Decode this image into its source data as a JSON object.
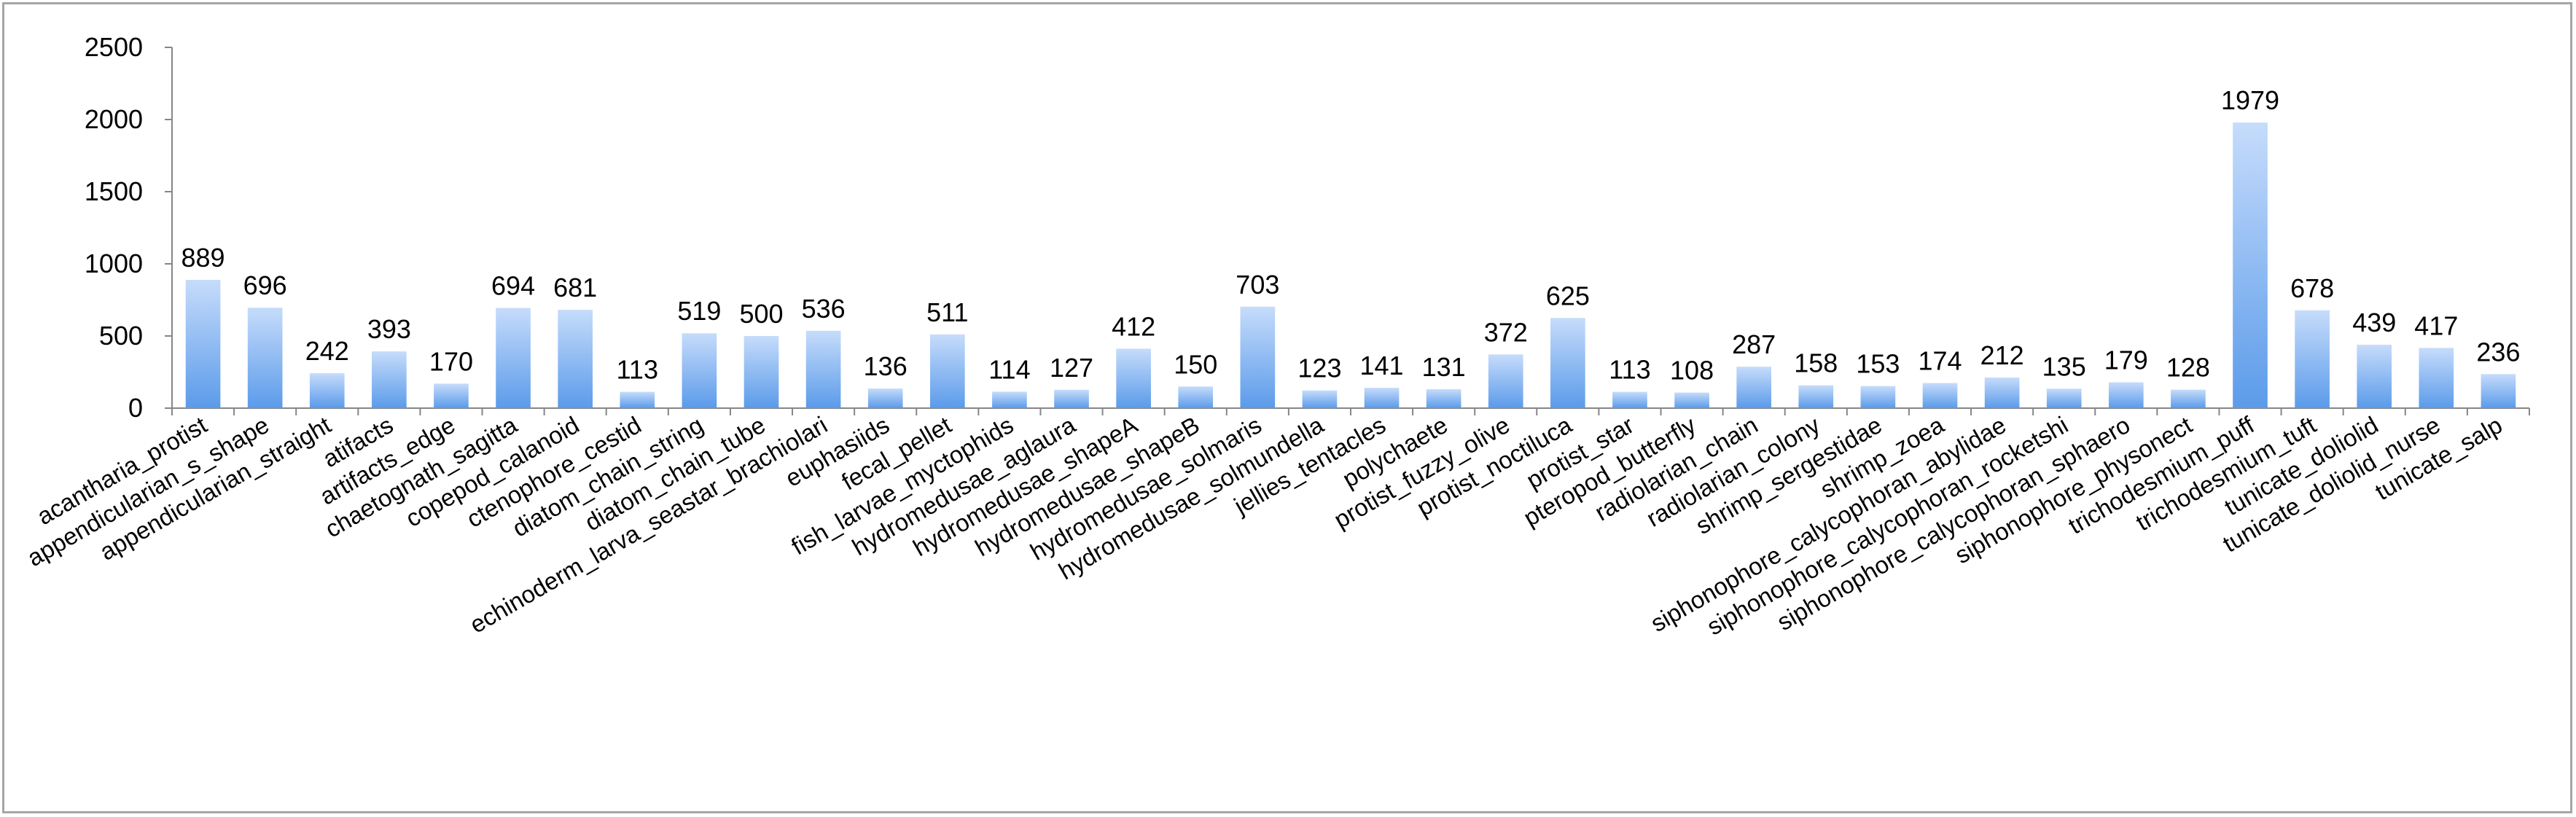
{
  "chart_data": {
    "type": "bar",
    "title": "",
    "xlabel": "",
    "ylabel": "",
    "ylim": [
      0,
      2500
    ],
    "yticks": [
      0,
      500,
      1000,
      1500,
      2000,
      2500
    ],
    "grid": false,
    "legend": "none",
    "bar_color_light": "#c6dcfb",
    "bar_color_dark": "#5b9bea",
    "categories": [
      "acantharia_protist",
      "appendicularian_s_shape",
      "appendicularian_straight",
      "atifacts",
      "artifacts_edge",
      "chaetognath_sagitta",
      "copepod_calanoid",
      "ctenophore_cestid",
      "diatom_chain_string",
      "diatom_chain_tube",
      "echinoderm_larva_seastar_brachiolari",
      "euphasiids",
      "fecal_pellet",
      "fish_larvae_myctophids",
      "hydromedusae_aglaura",
      "hydromedusae_shapeA",
      "hydromedusae_shapeB",
      "hydromedusae_solmaris",
      "hydromedusae_solmundella",
      "jellies_tentacles",
      "polychaete",
      "protist_fuzzy_olive",
      "protist_noctiluca",
      "protist_star",
      "pteropod_butterfly",
      "radiolarian_chain",
      "radiolarian_colony",
      "shrimp_sergestidae",
      "shrimp_zoea",
      "siphonophore_calycophoran_abylidae",
      "siphonophore_calycophoran_rocketshi",
      "siphonophore_calycophoran_sphaero",
      "siphonophore_physonect",
      "trichodesmium_puff",
      "trichodesmium_tuft",
      "tunicate_doliolid",
      "tunicate_doliolid_nurse",
      "tunicate_salp"
    ],
    "values": [
      889,
      696,
      242,
      393,
      170,
      694,
      681,
      113,
      519,
      500,
      536,
      136,
      511,
      114,
      127,
      412,
      150,
      703,
      123,
      141,
      131,
      372,
      625,
      113,
      108,
      287,
      158,
      153,
      174,
      212,
      135,
      179,
      128,
      1979,
      678,
      439,
      417,
      236
    ]
  }
}
